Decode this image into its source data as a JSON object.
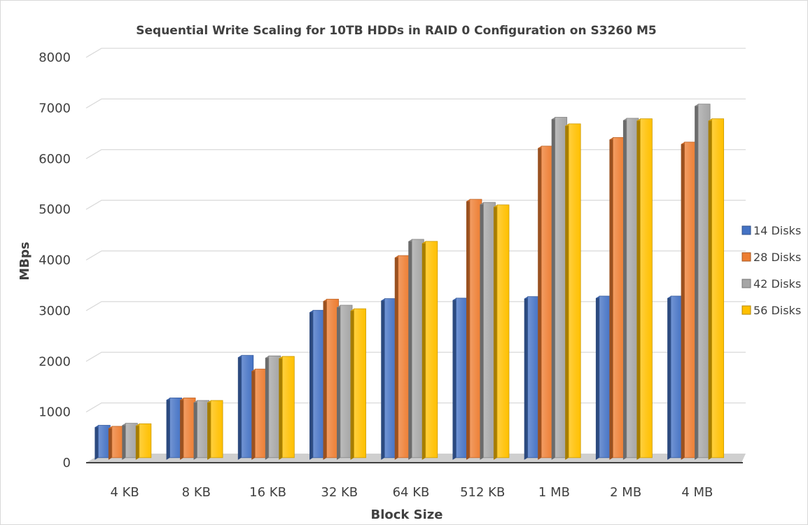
{
  "chart_data": {
    "type": "bar",
    "title": "Sequential Write Scaling for 10TB HDDs in RAID 0 Configuration on S3260 M5",
    "xlabel": "Block Size",
    "ylabel": "MBps",
    "ylim": [
      0,
      8000
    ],
    "yticks": [
      0,
      1000,
      2000,
      3000,
      4000,
      5000,
      6000,
      7000,
      8000
    ],
    "grid": true,
    "legend_position": "right",
    "categories": [
      "4 KB",
      "8 KB",
      "16 KB",
      "32 KB",
      "64 KB",
      "512 KB",
      "1 MB",
      "2 MB",
      "4 MB"
    ],
    "series": [
      {
        "name": "14 Disks",
        "color": "#4472C4",
        "values": [
          640,
          1180,
          2020,
          2910,
          3140,
          3150,
          3180,
          3190,
          3190
        ]
      },
      {
        "name": "28 Disks",
        "color": "#ED7D31",
        "values": [
          620,
          1180,
          1750,
          3130,
          3990,
          5100,
          6150,
          6320,
          6230
        ]
      },
      {
        "name": "42 Disks",
        "color": "#A5A5A5",
        "values": [
          680,
          1130,
          2010,
          3010,
          4310,
          5040,
          6720,
          6700,
          6980
        ]
      },
      {
        "name": "56 Disks",
        "color": "#FFC000",
        "values": [
          670,
          1130,
          2000,
          2940,
          4270,
          4990,
          6590,
          6690,
          6690
        ]
      }
    ]
  }
}
